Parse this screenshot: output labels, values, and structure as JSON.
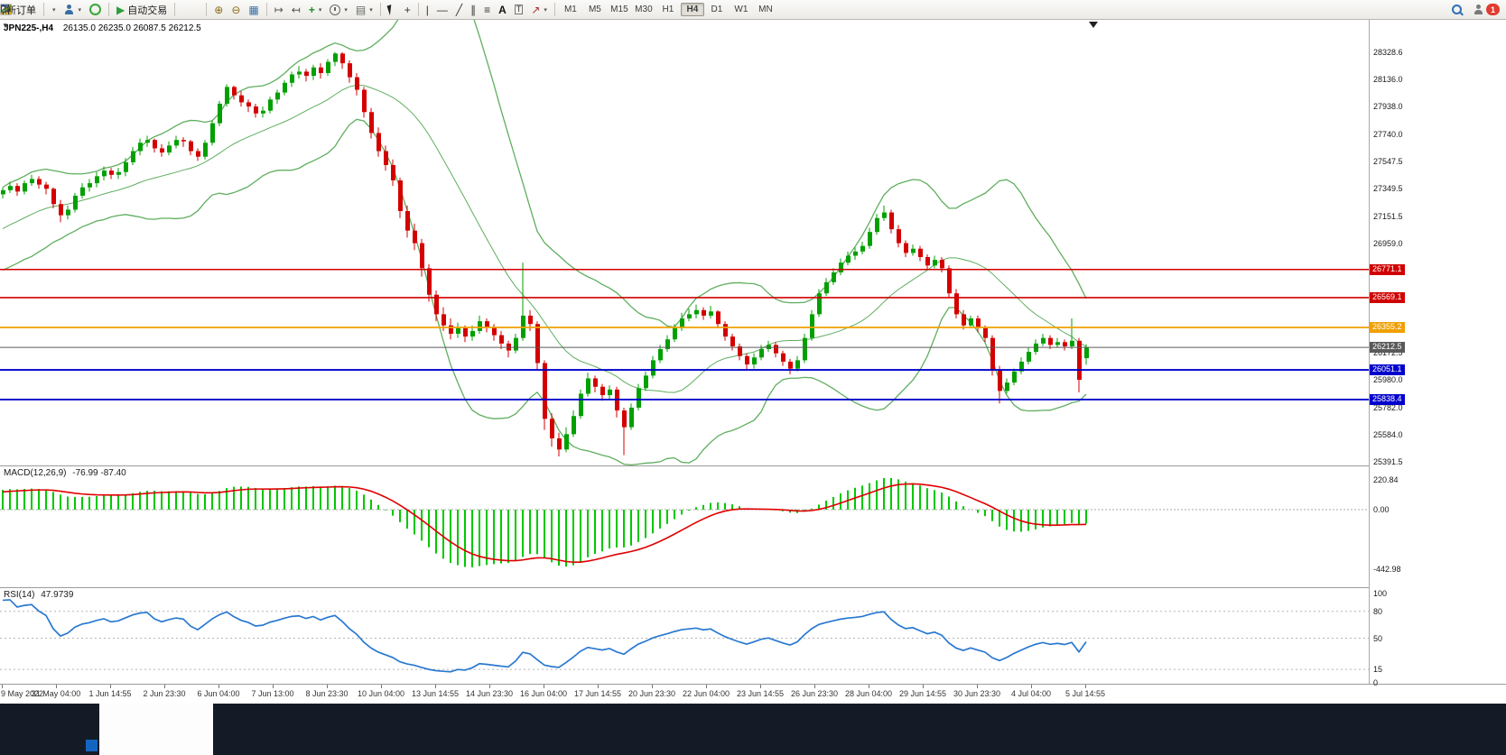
{
  "toolbar": {
    "new_order": "新订单",
    "autotrading": "自动交易",
    "timeframes": [
      "M1",
      "M5",
      "M15",
      "M30",
      "H1",
      "H4",
      "D1",
      "W1",
      "MN"
    ],
    "active_timeframe": "H4",
    "badge_count": "1"
  },
  "chart_data": {
    "type": "candlestick",
    "symbol_header": "JPN225-,H4",
    "ohlc_display": "26135.0 26235.0 26087.5 26212.5",
    "colors": {
      "bull": "#00a000",
      "bear": "#d40000",
      "bollinger": "#5fae5f",
      "macd_hist": "#00c800",
      "macd_signal": "#e00000",
      "rsi_line": "#2979d1"
    },
    "price_axis": {
      "min": 25391.5,
      "max": 28328.6,
      "ticks": [
        "28328.6",
        "28136.0",
        "27938.0",
        "27740.0",
        "27547.5",
        "27349.5",
        "27151.5",
        "26959.0",
        "26172.5",
        "25980.0",
        "25782.0",
        "25584.0",
        "25391.5"
      ]
    },
    "hlines": [
      {
        "price": 26771.1,
        "label": "26771.1",
        "color": "#d00000",
        "width": 1.6
      },
      {
        "price": 26569.1,
        "label": "26569.1",
        "color": "#d00000",
        "width": 1.6
      },
      {
        "price": 26355.2,
        "label": "26355.2",
        "color": "#f0a000",
        "width": 1.8
      },
      {
        "price": 26212.5,
        "label": "26212.5",
        "color": "#5a5a5a",
        "width": 1
      },
      {
        "price": 26051.1,
        "label": "26051.1",
        "color": "#0000cd",
        "width": 1.8
      },
      {
        "price": 25838.4,
        "label": "25838.4",
        "color": "#0000cd",
        "width": 1.8
      }
    ],
    "bollinger": {
      "period": 20,
      "deviation": 2
    },
    "macd": {
      "label": "MACD(12,26,9)",
      "values": "-76.99 -87.40",
      "fast": 12,
      "slow": 26,
      "signal": 9,
      "axis": [
        "220.84",
        "0.00",
        "-442.98"
      ]
    },
    "rsi": {
      "label": "RSI(14)",
      "value": "47.9739",
      "period": 14,
      "axis": [
        "100",
        "80",
        "50",
        "15",
        "0"
      ],
      "levels": [
        80,
        50,
        15
      ]
    },
    "time_axis": [
      "9 May 2022",
      "31 May 04:00",
      "1 Jun 14:55",
      "2 Jun 23:30",
      "6 Jun 04:00",
      "7 Jun 13:00",
      "8 Jun 23:30",
      "10 Jun 04:00",
      "13 Jun 14:55",
      "14 Jun 23:30",
      "16 Jun 04:00",
      "17 Jun 14:55",
      "20 Jun 23:30",
      "22 Jun 04:00",
      "23 Jun 14:55",
      "26 Jun 23:30",
      "28 Jun 04:00",
      "29 Jun 14:55",
      "30 Jun 23:30",
      "4 Jul 04:00",
      "5 Jul 14:55"
    ],
    "candles": [
      [
        27310,
        27360,
        27280,
        27340
      ],
      [
        27340,
        27400,
        27320,
        27370
      ],
      [
        27370,
        27390,
        27300,
        27330
      ],
      [
        27330,
        27410,
        27310,
        27390
      ],
      [
        27390,
        27450,
        27370,
        27420
      ],
      [
        27420,
        27440,
        27350,
        27380
      ],
      [
        27380,
        27400,
        27310,
        27350
      ],
      [
        27350,
        27360,
        27210,
        27240
      ],
      [
        27240,
        27270,
        27110,
        27160
      ],
      [
        27160,
        27230,
        27130,
        27200
      ],
      [
        27200,
        27320,
        27180,
        27300
      ],
      [
        27300,
        27390,
        27280,
        27360
      ],
      [
        27360,
        27420,
        27330,
        27390
      ],
      [
        27390,
        27470,
        27360,
        27440
      ],
      [
        27440,
        27510,
        27410,
        27480
      ],
      [
        27480,
        27500,
        27420,
        27450
      ],
      [
        27450,
        27500,
        27420,
        27470
      ],
      [
        27470,
        27570,
        27440,
        27540
      ],
      [
        27540,
        27650,
        27520,
        27620
      ],
      [
        27620,
        27710,
        27590,
        27680
      ],
      [
        27680,
        27730,
        27650,
        27700
      ],
      [
        27700,
        27710,
        27610,
        27640
      ],
      [
        27640,
        27670,
        27580,
        27610
      ],
      [
        27610,
        27690,
        27590,
        27660
      ],
      [
        27660,
        27730,
        27640,
        27700
      ],
      [
        27700,
        27720,
        27650,
        27690
      ],
      [
        27690,
        27700,
        27590,
        27620
      ],
      [
        27620,
        27640,
        27550,
        27580
      ],
      [
        27580,
        27700,
        27560,
        27680
      ],
      [
        27680,
        27840,
        27660,
        27820
      ],
      [
        27820,
        27980,
        27800,
        27960
      ],
      [
        27960,
        28100,
        27940,
        28080
      ],
      [
        28080,
        28090,
        27990,
        28020
      ],
      [
        28020,
        28050,
        27940,
        27970
      ],
      [
        27970,
        27990,
        27900,
        27940
      ],
      [
        27940,
        27960,
        27860,
        27890
      ],
      [
        27890,
        27940,
        27860,
        27910
      ],
      [
        27910,
        28010,
        27890,
        27990
      ],
      [
        27990,
        28060,
        27960,
        28040
      ],
      [
        28040,
        28130,
        28020,
        28110
      ],
      [
        28110,
        28190,
        28080,
        28170
      ],
      [
        28170,
        28230,
        28140,
        28190
      ],
      [
        28190,
        28210,
        28120,
        28160
      ],
      [
        28160,
        28240,
        28130,
        28220
      ],
      [
        28220,
        28250,
        28140,
        28180
      ],
      [
        28180,
        28280,
        28160,
        28260
      ],
      [
        28260,
        28330,
        28230,
        28320
      ],
      [
        28320,
        28330,
        28210,
        28250
      ],
      [
        28250,
        28270,
        28110,
        28150
      ],
      [
        28150,
        28180,
        28020,
        28060
      ],
      [
        28060,
        28080,
        27860,
        27900
      ],
      [
        27900,
        27930,
        27710,
        27750
      ],
      [
        27750,
        27790,
        27580,
        27620
      ],
      [
        27620,
        27660,
        27480,
        27520
      ],
      [
        27520,
        27560,
        27370,
        27410
      ],
      [
        27410,
        27430,
        27140,
        27190
      ],
      [
        27190,
        27230,
        27000,
        27050
      ],
      [
        27050,
        27100,
        26910,
        26960
      ],
      [
        26960,
        26990,
        26720,
        26780
      ],
      [
        26780,
        26810,
        26540,
        26590
      ],
      [
        26590,
        26620,
        26400,
        26450
      ],
      [
        26450,
        26500,
        26330,
        26370
      ],
      [
        26370,
        26420,
        26270,
        26310
      ],
      [
        26310,
        26390,
        26280,
        26350
      ],
      [
        26350,
        26370,
        26250,
        26290
      ],
      [
        26290,
        26370,
        26260,
        26330
      ],
      [
        26330,
        26440,
        26310,
        26400
      ],
      [
        26400,
        26420,
        26320,
        26360
      ],
      [
        26360,
        26380,
        26260,
        26300
      ],
      [
        26300,
        26330,
        26200,
        26240
      ],
      [
        26240,
        26260,
        26140,
        26190
      ],
      [
        26190,
        26310,
        26170,
        26280
      ],
      [
        26280,
        26820,
        26260,
        26440
      ],
      [
        26440,
        26480,
        26330,
        26380
      ],
      [
        26380,
        26400,
        26050,
        26100
      ],
      [
        26100,
        26120,
        25620,
        25700
      ],
      [
        25700,
        25740,
        25500,
        25560
      ],
      [
        25560,
        25600,
        25430,
        25480
      ],
      [
        25480,
        25640,
        25460,
        25590
      ],
      [
        25590,
        25760,
        25570,
        25720
      ],
      [
        25720,
        25910,
        25700,
        25880
      ],
      [
        25880,
        26030,
        25860,
        25990
      ],
      [
        25990,
        26010,
        25890,
        25930
      ],
      [
        25930,
        25950,
        25830,
        25870
      ],
      [
        25870,
        25940,
        25840,
        25910
      ],
      [
        25910,
        25930,
        25710,
        25760
      ],
      [
        25760,
        25780,
        25440,
        25640
      ],
      [
        25640,
        25810,
        25620,
        25780
      ],
      [
        25780,
        25950,
        25760,
        25920
      ],
      [
        25920,
        26040,
        25900,
        26010
      ],
      [
        26010,
        26150,
        25990,
        26120
      ],
      [
        26120,
        26230,
        26100,
        26200
      ],
      [
        26200,
        26300,
        26180,
        26270
      ],
      [
        26270,
        26380,
        26250,
        26350
      ],
      [
        26350,
        26460,
        26330,
        26420
      ],
      [
        26420,
        26490,
        26400,
        26450
      ],
      [
        26450,
        26520,
        26420,
        26480
      ],
      [
        26480,
        26500,
        26410,
        26440
      ],
      [
        26440,
        26510,
        26420,
        26470
      ],
      [
        26470,
        26480,
        26350,
        26380
      ],
      [
        26380,
        26400,
        26260,
        26290
      ],
      [
        26290,
        26310,
        26190,
        26220
      ],
      [
        26220,
        26240,
        26120,
        26150
      ],
      [
        26150,
        26170,
        26050,
        26090
      ],
      [
        26090,
        26170,
        26060,
        26140
      ],
      [
        26140,
        26230,
        26120,
        26200
      ],
      [
        26200,
        26260,
        26180,
        26230
      ],
      [
        26230,
        26250,
        26140,
        26170
      ],
      [
        26170,
        26190,
        26080,
        26110
      ],
      [
        26110,
        26130,
        26020,
        26060
      ],
      [
        26060,
        26150,
        26040,
        26120
      ],
      [
        26120,
        26310,
        26100,
        26280
      ],
      [
        26280,
        26480,
        26260,
        26450
      ],
      [
        26450,
        26630,
        26430,
        26600
      ],
      [
        26600,
        26710,
        26580,
        26680
      ],
      [
        26680,
        26780,
        26660,
        26750
      ],
      [
        26750,
        26850,
        26730,
        26820
      ],
      [
        26820,
        26900,
        26800,
        26870
      ],
      [
        26870,
        26930,
        26840,
        26900
      ],
      [
        26900,
        26970,
        26880,
        26940
      ],
      [
        26940,
        27070,
        26920,
        27040
      ],
      [
        27040,
        27170,
        27020,
        27140
      ],
      [
        27140,
        27230,
        27120,
        27180
      ],
      [
        27180,
        27200,
        27030,
        27060
      ],
      [
        27060,
        27090,
        26930,
        26960
      ],
      [
        26960,
        26980,
        26860,
        26890
      ],
      [
        26890,
        26950,
        26870,
        26920
      ],
      [
        26920,
        26940,
        26830,
        26860
      ],
      [
        26860,
        26880,
        26770,
        26800
      ],
      [
        26800,
        26870,
        26780,
        26840
      ],
      [
        26840,
        26860,
        26750,
        26780
      ],
      [
        26780,
        26800,
        26570,
        26600
      ],
      [
        26600,
        26630,
        26420,
        26450
      ],
      [
        26450,
        26480,
        26340,
        26370
      ],
      [
        26370,
        26440,
        26350,
        26420
      ],
      [
        26420,
        26440,
        26320,
        26350
      ],
      [
        26350,
        26370,
        26250,
        26280
      ],
      [
        26280,
        26300,
        26010,
        26050
      ],
      [
        26050,
        26080,
        25810,
        25900
      ],
      [
        25900,
        25990,
        25880,
        25960
      ],
      [
        25960,
        26060,
        25940,
        26040
      ],
      [
        26040,
        26140,
        26020,
        26110
      ],
      [
        26110,
        26210,
        26090,
        26180
      ],
      [
        26180,
        26270,
        26160,
        26240
      ],
      [
        26240,
        26310,
        26220,
        26280
      ],
      [
        26280,
        26300,
        26200,
        26230
      ],
      [
        26230,
        26280,
        26210,
        26250
      ],
      [
        26250,
        26270,
        26190,
        26220
      ],
      [
        26220,
        26420,
        26200,
        26260
      ],
      [
        26260,
        26280,
        25890,
        25980
      ],
      [
        26135,
        26235,
        26087.5,
        26212.5
      ]
    ]
  }
}
